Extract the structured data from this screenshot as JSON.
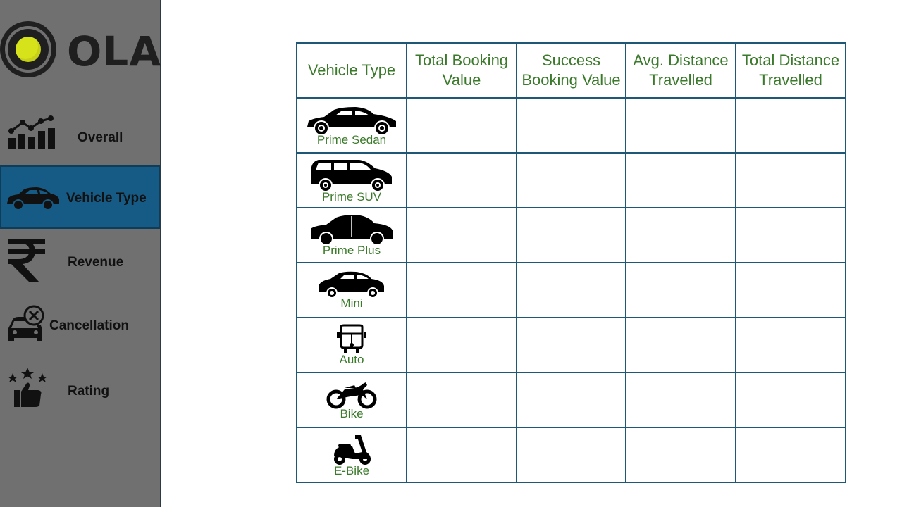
{
  "brand": {
    "logo_text": "OLA",
    "logo_accent": "#d6e21a"
  },
  "sidebar": {
    "items": [
      {
        "label": "Overall",
        "icon": "chart-icon",
        "active": false
      },
      {
        "label": "Vehicle Type",
        "icon": "car-icon",
        "active": true
      },
      {
        "label": "Revenue",
        "icon": "rupee-icon",
        "active": false
      },
      {
        "label": "Cancellation",
        "icon": "car-cancel-icon",
        "active": false
      },
      {
        "label": "Rating",
        "icon": "thumbs-up-stars-icon",
        "active": false
      }
    ],
    "active_color": "#155b85"
  },
  "table": {
    "headers": [
      "Vehicle Type",
      "Total Booking Value",
      "Success Booking Value",
      "Avg. Distance Travelled",
      "Total Distance Travelled"
    ],
    "rows": [
      {
        "vehicle": "Prime Sedan",
        "icon": "sedan-icon"
      },
      {
        "vehicle": "Prime SUV",
        "icon": "suv-icon"
      },
      {
        "vehicle": "Prime Plus",
        "icon": "prime-plus-car-icon"
      },
      {
        "vehicle": "Mini",
        "icon": "hatchback-icon"
      },
      {
        "vehicle": "Auto",
        "icon": "auto-rickshaw-icon"
      },
      {
        "vehicle": "Bike",
        "icon": "motorbike-icon"
      },
      {
        "vehicle": "E-Bike",
        "icon": "scooter-icon"
      }
    ],
    "border_color": "#1f5877",
    "text_color": "#3a7a2a"
  }
}
